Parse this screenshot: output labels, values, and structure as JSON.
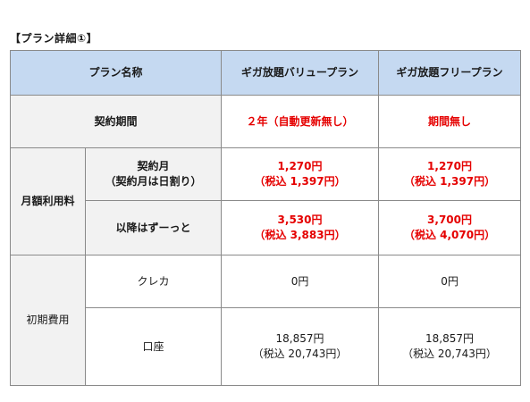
{
  "caption": "【プラン詳細①】",
  "header": {
    "plan_name": "プラン名称",
    "plan_a": "ギガ放題バリュープラン",
    "plan_b": "ギガ放題フリープラン"
  },
  "contract_period": {
    "label": "契約期間",
    "plan_a": "２年（自動更新無し）",
    "plan_b": "期間無し"
  },
  "monthly_fee": {
    "label": "月額利用料",
    "contract_month": {
      "label_line1": "契約月",
      "label_line2": "（契約月は日割り）",
      "plan_a_line1": "1,270円",
      "plan_a_line2": "（税込 1,397円）",
      "plan_b_line1": "1,270円",
      "plan_b_line2": "（税込 1,397円）"
    },
    "after": {
      "label": "以降はずーっと",
      "plan_a_line1": "3,530円",
      "plan_a_line2": "（税込 3,883円）",
      "plan_b_line1": "3,700円",
      "plan_b_line2": "（税込 4,070円）"
    }
  },
  "initial_cost": {
    "label": "初期費用",
    "credit": {
      "label": "クレカ",
      "plan_a": "0円",
      "plan_b": "0円"
    },
    "bank": {
      "label": "口座",
      "plan_a_line1": "18,857円",
      "plan_a_line2": "（税込 20,743円）",
      "plan_b_line1": "18,857円",
      "plan_b_line2": "（税込 20,743円）"
    }
  },
  "colors": {
    "header_bg": "#c5d9f1",
    "label_bg": "#f2f2f2",
    "highlight_text": "#e50000",
    "border": "#8a8a8a"
  }
}
